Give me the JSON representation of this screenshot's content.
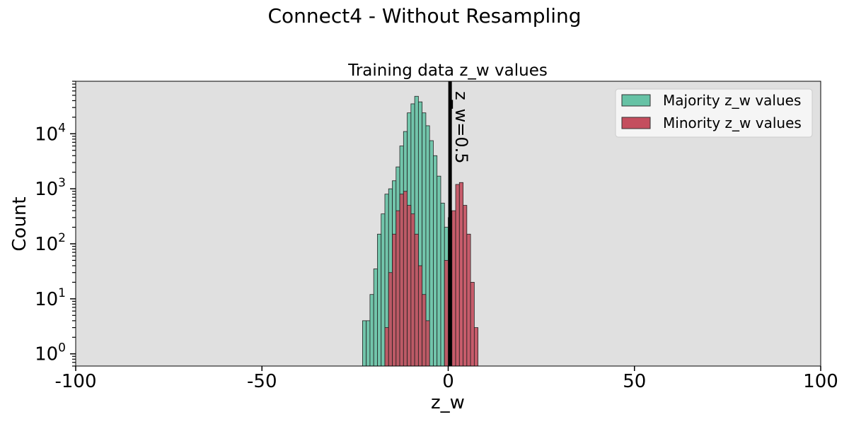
{
  "figure_title": "Connect4 - Without Resampling",
  "chart_data": {
    "type": "bar",
    "title": "Training data z_w values",
    "xlabel": "z_w",
    "ylabel": "Count",
    "xlim": [
      -100,
      100
    ],
    "ylim": [
      0.6,
      90000
    ],
    "yscale": "log",
    "xticks": [
      -100,
      -50,
      0,
      50,
      100
    ],
    "xtick_labels": [
      "-100",
      "-50",
      "0",
      "50",
      "100"
    ],
    "yticks": [
      {
        "value": 1,
        "label_base": "10",
        "label_exp": "0"
      },
      {
        "value": 10,
        "label_base": "10",
        "label_exp": "1"
      },
      {
        "value": 100,
        "label_base": "10",
        "label_exp": "2"
      },
      {
        "value": 1000,
        "label_base": "10",
        "label_exp": "3"
      },
      {
        "value": 10000,
        "label_base": "10",
        "label_exp": "4"
      }
    ],
    "background_color": "#e0e0e0",
    "grid": false,
    "legend_position": "top-right",
    "bin_width": 1,
    "series": [
      {
        "name": "Majority z_w values",
        "color": "#66c2a5",
        "bins": [
          {
            "x": -23,
            "count": 4
          },
          {
            "x": -22,
            "count": 4
          },
          {
            "x": -21,
            "count": 12
          },
          {
            "x": -20,
            "count": 35
          },
          {
            "x": -19,
            "count": 150
          },
          {
            "x": -18,
            "count": 350
          },
          {
            "x": -17,
            "count": 800
          },
          {
            "x": -16,
            "count": 1000
          },
          {
            "x": -15,
            "count": 1400
          },
          {
            "x": -14,
            "count": 2500
          },
          {
            "x": -13,
            "count": 6000
          },
          {
            "x": -12,
            "count": 11000
          },
          {
            "x": -11,
            "count": 24000
          },
          {
            "x": -10,
            "count": 35000
          },
          {
            "x": -9,
            "count": 48000
          },
          {
            "x": -8,
            "count": 38000
          },
          {
            "x": -7,
            "count": 24000
          },
          {
            "x": -6,
            "count": 14000
          },
          {
            "x": -5,
            "count": 7500
          },
          {
            "x": -4,
            "count": 4000
          },
          {
            "x": -3,
            "count": 1700
          },
          {
            "x": -2,
            "count": 550
          },
          {
            "x": -1,
            "count": 200
          },
          {
            "x": 0,
            "count": 80
          }
        ]
      },
      {
        "name": "Minority z_w values",
        "color": "#c44e5e",
        "bins": [
          {
            "x": -17,
            "count": 3
          },
          {
            "x": -16,
            "count": 30
          },
          {
            "x": -15,
            "count": 150
          },
          {
            "x": -14,
            "count": 400
          },
          {
            "x": -13,
            "count": 800
          },
          {
            "x": -12,
            "count": 900
          },
          {
            "x": -11,
            "count": 500
          },
          {
            "x": -10,
            "count": 350
          },
          {
            "x": -9,
            "count": 150
          },
          {
            "x": -8,
            "count": 40
          },
          {
            "x": -7,
            "count": 12
          },
          {
            "x": -6,
            "count": 4
          },
          {
            "x": -1,
            "count": 50
          },
          {
            "x": 0,
            "count": 300
          },
          {
            "x": 1,
            "count": 400
          },
          {
            "x": 2,
            "count": 1200
          },
          {
            "x": 3,
            "count": 1300
          },
          {
            "x": 4,
            "count": 500
          },
          {
            "x": 5,
            "count": 150
          },
          {
            "x": 6,
            "count": 20
          },
          {
            "x": 7,
            "count": 3
          }
        ]
      }
    ],
    "vline": {
      "x": 0.5,
      "label": "z_w=0.5",
      "color": "#000000"
    }
  }
}
